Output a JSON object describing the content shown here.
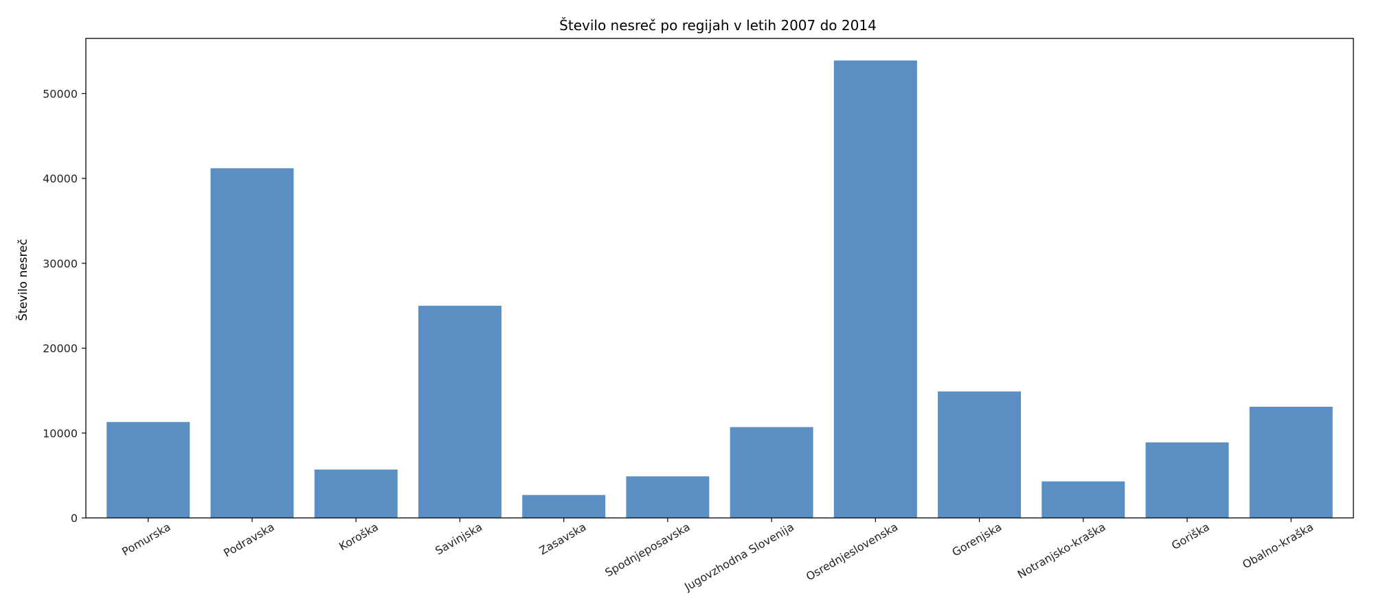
{
  "chart_data": {
    "type": "bar",
    "title": "Število nesreč po regijah v letih 2007 do 2014",
    "xlabel": "",
    "ylabel": "Število nesreč",
    "categories": [
      "Pomurska",
      "Podravska",
      "Koroška",
      "Savinjska",
      "Zasavska",
      "Spodnjeposavska",
      "Jugovzhodna Slovenija",
      "Osrednjeslovenska",
      "Gorenjska",
      "Notranjsko-kraška",
      "Goriška",
      "Obalno-kraška"
    ],
    "values": [
      11300,
      41200,
      5700,
      25000,
      2700,
      4900,
      10700,
      53900,
      14900,
      4300,
      8900,
      13100
    ],
    "ylim": [
      0,
      56500
    ],
    "yticks": [
      0,
      10000,
      20000,
      30000,
      40000,
      50000
    ],
    "grid": false,
    "colors": {
      "bar": "#5b8fc4",
      "axis": "#000000"
    }
  }
}
